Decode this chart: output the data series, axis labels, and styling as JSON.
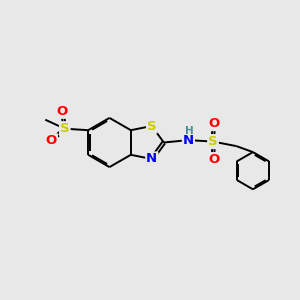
{
  "background_color": "#e8e8e8",
  "bond_color": "#000000",
  "S_color": "#cccc00",
  "N_color": "#0000ff",
  "O_color": "#ff0000",
  "H_color": "#4a9090",
  "line_width": 1.4,
  "font_size_atom": 9.5,
  "font_size_H": 7.5,
  "xlim": [
    0,
    10
  ],
  "ylim": [
    0,
    10
  ]
}
